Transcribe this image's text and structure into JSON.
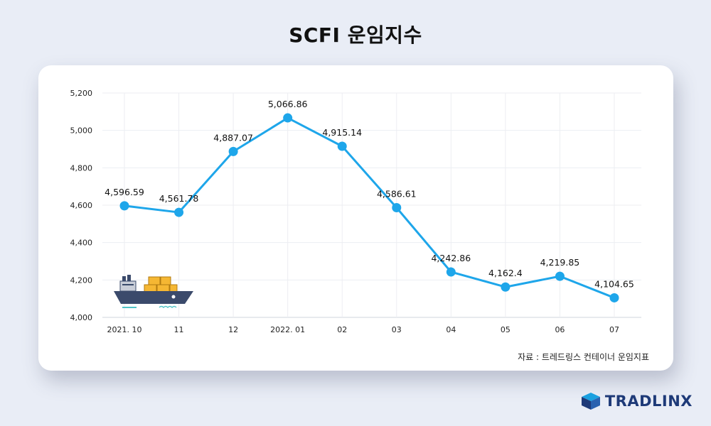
{
  "page": {
    "title": "SCFI 운임지수",
    "source": "자료 : 트레드링스 컨테이너 운임지표",
    "logo_text": "TRADLINX"
  },
  "colors": {
    "line": "#1ea6ea",
    "brand": "#1e3a78",
    "background": "#e9edf6"
  },
  "chart_data": {
    "type": "line",
    "title": "SCFI 운임지수",
    "categories": [
      "2021. 10",
      "11",
      "12",
      "2022. 01",
      "02",
      "03",
      "04",
      "05",
      "06",
      "07"
    ],
    "series": [
      {
        "values": [
          4596.59,
          4561.78,
          4887.07,
          5066.86,
          4915.14,
          4586.61,
          4242.86,
          4162.4,
          4219.85,
          4104.65
        ],
        "labels": [
          "4,596.59",
          "4,561.78",
          "4,887.07",
          "5,066.86",
          "4,915.14",
          "4,586.61",
          "4,242.86",
          "4,162.4",
          "4,219.85",
          "4,104.65"
        ]
      }
    ],
    "ylim": [
      4000,
      5200
    ],
    "yticks": [
      4000,
      4200,
      4400,
      4600,
      4800,
      5000,
      5200
    ],
    "ytick_labels": [
      "4,000",
      "4,200",
      "4,400",
      "4,600",
      "4,800",
      "5,000",
      "5,200"
    ],
    "grid": true,
    "legend": "none"
  }
}
